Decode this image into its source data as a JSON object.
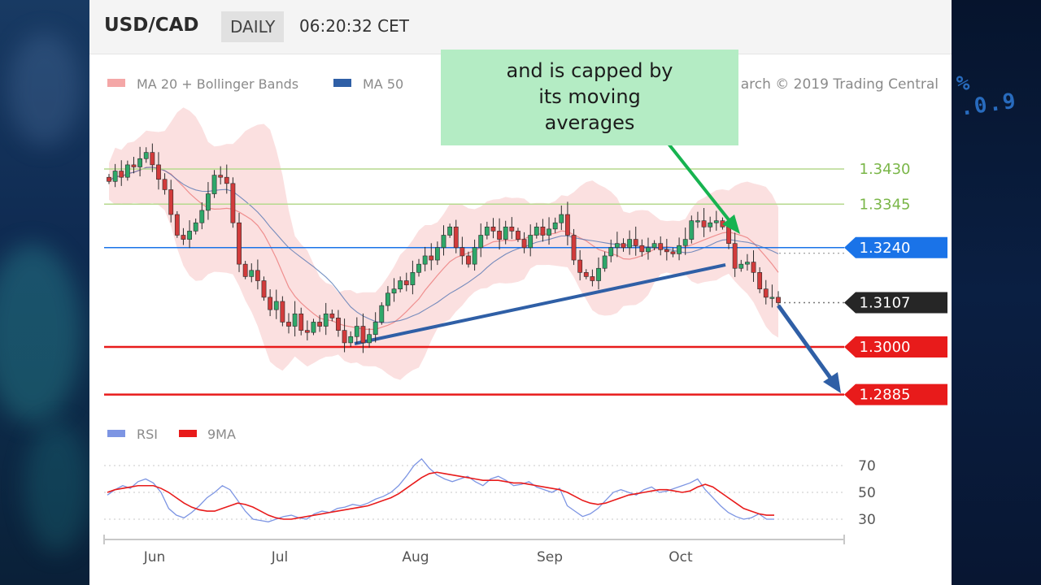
{
  "header": {
    "symbol": "USD/CAD",
    "period": "DAILY",
    "time": "06:20:32 CET"
  },
  "callout": {
    "line1": "and is capped by",
    "line2": "its moving",
    "line3": "averages"
  },
  "watermark": "arch © 2019 Trading Central",
  "background_deco": "% .0.9",
  "colors": {
    "resistance": "#7ab648",
    "pivot": "#1a73e8",
    "support": "#e81b1b",
    "last_price": "#262626",
    "trendline": "#2f5fa6",
    "ma20_band": "#f4a7a7",
    "ma50": "#4a6fb0",
    "arrow_green": "#17b350",
    "arrow_blue": "#2f5fa6",
    "rsi": "#7d95e3",
    "rsi_ma": "#e81b1b"
  },
  "chart_data": [
    {
      "type": "candlestick",
      "title": "USD/CAD",
      "period": "DAILY",
      "x_ticks": [
        "Jun",
        "Jul",
        "Aug",
        "Sep",
        "Oct"
      ],
      "ylim": [
        1.281,
        1.354
      ],
      "legend": [
        {
          "name": "MA 20 + Bollinger Bands",
          "color": "#f4a7a7"
        },
        {
          "name": "MA 50",
          "color": "#2f5fa6"
        }
      ],
      "levels": [
        {
          "value": 1.343,
          "label": "1.3430",
          "kind": "resistance",
          "color": "#7ab648"
        },
        {
          "value": 1.3345,
          "label": "1.3345",
          "kind": "resistance",
          "color": "#7ab648"
        },
        {
          "value": 1.324,
          "label": "1.3240",
          "kind": "pivot",
          "color": "#1a73e8"
        },
        {
          "value": 1.3107,
          "label": "1.3107",
          "kind": "last",
          "color": "#262626"
        },
        {
          "value": 1.3,
          "label": "1.3000",
          "kind": "support",
          "color": "#e81b1b"
        },
        {
          "value": 1.2885,
          "label": "1.2885",
          "kind": "support",
          "color": "#e81b1b"
        }
      ],
      "closes": [
        1.34,
        1.3425,
        1.341,
        1.344,
        1.3435,
        1.3455,
        1.347,
        1.344,
        1.3405,
        1.338,
        1.332,
        1.327,
        1.326,
        1.328,
        1.33,
        1.333,
        1.337,
        1.3415,
        1.341,
        1.3395,
        1.33,
        1.32,
        1.317,
        1.3185,
        1.316,
        1.312,
        1.309,
        1.311,
        1.306,
        1.305,
        1.308,
        1.304,
        1.3035,
        1.306,
        1.305,
        1.308,
        1.307,
        1.304,
        1.301,
        1.3025,
        1.305,
        1.301,
        1.303,
        1.306,
        1.31,
        1.313,
        1.314,
        1.316,
        1.315,
        1.318,
        1.32,
        1.322,
        1.321,
        1.324,
        1.327,
        1.329,
        1.324,
        1.322,
        1.32,
        1.324,
        1.327,
        1.329,
        1.328,
        1.326,
        1.329,
        1.328,
        1.326,
        1.324,
        1.327,
        1.329,
        1.327,
        1.3285,
        1.33,
        1.332,
        1.327,
        1.321,
        1.318,
        1.317,
        1.316,
        1.319,
        1.322,
        1.324,
        1.325,
        1.324,
        1.326,
        1.3245,
        1.323,
        1.324,
        1.325,
        1.3235,
        1.323,
        1.3225,
        1.3245,
        1.326,
        1.3305,
        1.3305,
        1.329,
        1.33,
        1.3305,
        1.329,
        1.325,
        1.319,
        1.32,
        1.3205,
        1.318,
        1.314,
        1.312,
        1.312,
        1.3107
      ]
    },
    {
      "type": "line",
      "title": "RSI",
      "ylim": [
        20,
        80
      ],
      "y_ticks": [
        70,
        50,
        30
      ],
      "x_ticks": [
        "Jun",
        "Jul",
        "Aug",
        "Sep",
        "Oct"
      ],
      "series": [
        {
          "name": "RSI",
          "values": [
            48,
            52,
            55,
            53,
            58,
            60,
            57,
            50,
            38,
            33,
            31,
            35,
            40,
            46,
            50,
            55,
            52,
            44,
            36,
            30,
            29,
            28,
            30,
            32,
            33,
            31,
            30,
            34,
            36,
            35,
            38,
            39,
            41,
            40,
            42,
            45,
            47,
            50,
            55,
            62,
            70,
            75,
            68,
            63,
            60,
            58,
            60,
            62,
            58,
            55,
            60,
            62,
            59,
            55,
            56,
            58,
            54,
            52,
            50,
            53,
            40,
            36,
            32,
            34,
            38,
            44,
            50,
            52,
            50,
            48,
            52,
            54,
            50,
            51,
            53,
            55,
            57,
            60,
            52,
            46,
            40,
            35,
            32,
            30,
            31,
            34,
            30,
            30
          ]
        },
        {
          "name": "9MA",
          "values": [
            50,
            52,
            53,
            54,
            55,
            55,
            55,
            53,
            50,
            46,
            42,
            39,
            37,
            36,
            36,
            38,
            40,
            42,
            41,
            39,
            36,
            33,
            31,
            30,
            30,
            31,
            32,
            33,
            34,
            35,
            36,
            37,
            38,
            39,
            40,
            42,
            44,
            46,
            49,
            53,
            57,
            61,
            64,
            65,
            64,
            63,
            62,
            61,
            60,
            59,
            59,
            59,
            58,
            57,
            57,
            56,
            55,
            54,
            53,
            52,
            50,
            47,
            44,
            42,
            41,
            42,
            44,
            46,
            48,
            49,
            50,
            51,
            52,
            52,
            51,
            50,
            51,
            54,
            56,
            54,
            50,
            46,
            42,
            38,
            36,
            34,
            33,
            33
          ]
        }
      ]
    }
  ]
}
